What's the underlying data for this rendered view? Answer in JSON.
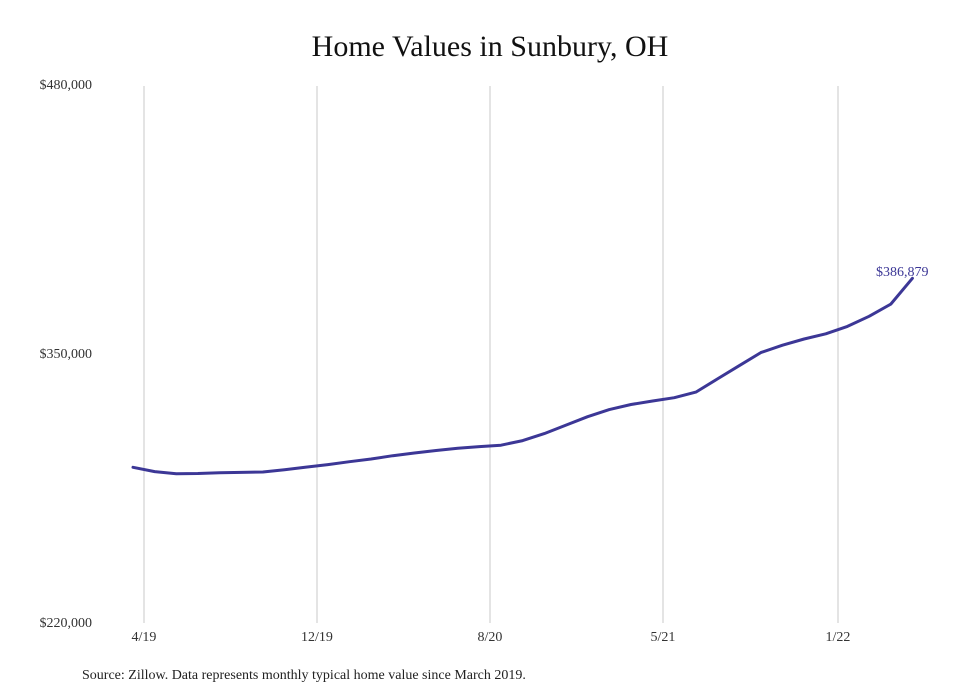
{
  "chart_data": {
    "type": "line",
    "title": "Home Values in Sunbury, OH",
    "xlabel": "",
    "ylabel": "",
    "x": [
      "2019-03",
      "2019-04",
      "2019-05",
      "2019-06",
      "2019-07",
      "2019-08",
      "2019-09",
      "2019-10",
      "2019-11",
      "2019-12",
      "2020-01",
      "2020-02",
      "2020-03",
      "2020-04",
      "2020-05",
      "2020-06",
      "2020-07",
      "2020-08",
      "2020-09",
      "2020-10",
      "2020-11",
      "2020-12",
      "2021-01",
      "2021-02",
      "2021-03",
      "2021-04",
      "2021-05",
      "2021-06",
      "2021-07",
      "2021-08",
      "2021-09",
      "2021-10",
      "2021-11",
      "2021-12",
      "2022-01",
      "2022-02",
      "2022-03"
    ],
    "series": [
      {
        "values": [
          295400,
          293300,
          292300,
          292400,
          292700,
          292900,
          293100,
          294200,
          295500,
          296700,
          298100,
          299400,
          301000,
          302300,
          303500,
          304600,
          305400,
          306100,
          308300,
          311700,
          315800,
          319900,
          323300,
          325800,
          327500,
          329100,
          331800,
          338200,
          344600,
          350900,
          354500,
          357500,
          360000,
          363600,
          368500,
          374400,
          386879
        ]
      }
    ],
    "x_ticks": [
      "4/19",
      "12/19",
      "8/20",
      "5/21",
      "1/22"
    ],
    "y_ticks": [
      "$480,000",
      "$350,000",
      "$220,000"
    ],
    "ylim": [
      220000,
      480000
    ],
    "grid": "vertical at x tick labels",
    "end_label": "$386,879",
    "line_color": "#3c3796",
    "grid_color": "#c8c8c8"
  },
  "source_note": "Source: Zillow. Data represents monthly typical home value since March 2019."
}
